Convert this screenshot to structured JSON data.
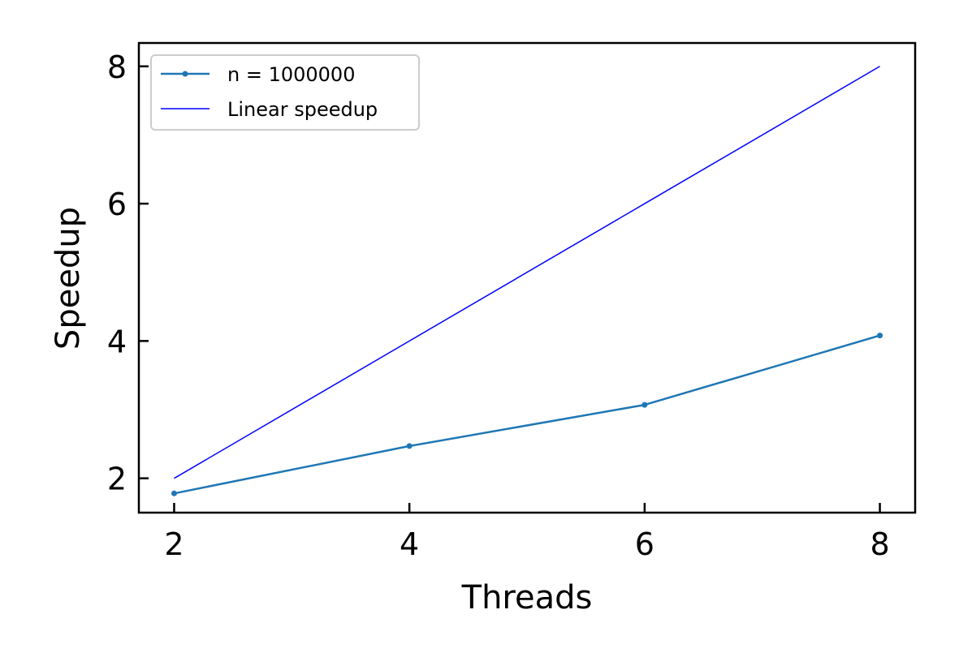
{
  "chart_data": {
    "type": "line",
    "title": "",
    "xlabel": "Threads",
    "ylabel": "Speedup",
    "xlim": [
      1.7,
      8.3
    ],
    "ylim": [
      1.5,
      8.34
    ],
    "xticks": [
      2,
      4,
      6,
      8
    ],
    "yticks": [
      2,
      4,
      6,
      8
    ],
    "xtick_labels": [
      "2",
      "4",
      "6",
      "8"
    ],
    "ytick_labels": [
      "2",
      "4",
      "6",
      "8"
    ],
    "grid": false,
    "legend_position": "top-left",
    "series": [
      {
        "name": "n = 1000000",
        "x": [
          2,
          4,
          6,
          8
        ],
        "y": [
          1.78,
          2.47,
          3.07,
          4.08
        ],
        "color": "#1f77b4",
        "marker": true
      },
      {
        "name": "Linear speedup",
        "x": [
          2,
          4,
          6,
          8
        ],
        "y": [
          2,
          4,
          6,
          8
        ],
        "color": "#0000ff",
        "marker": false
      }
    ]
  }
}
